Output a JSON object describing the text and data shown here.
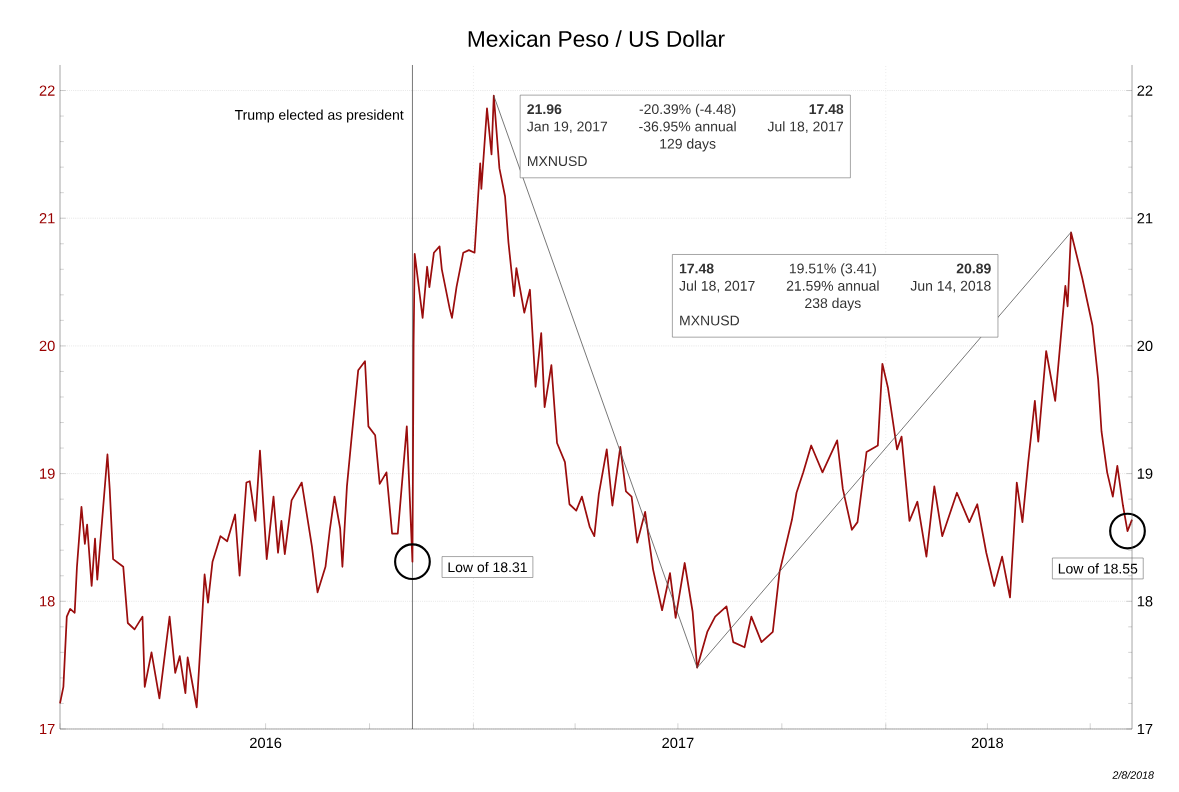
{
  "chart_data": {
    "type": "line",
    "title": "Mexican Peso / US Dollar",
    "x": [
      "2016-01-01",
      "2016-01-04",
      "2016-01-07",
      "2016-01-10",
      "2016-01-14",
      "2016-01-16",
      "2016-01-20",
      "2016-01-23",
      "2016-01-25",
      "2016-01-29",
      "2016-02-01",
      "2016-02-03",
      "2016-02-12",
      "2016-02-14",
      "2016-02-17",
      "2016-02-26",
      "2016-03-01",
      "2016-03-07",
      "2016-03-14",
      "2016-03-16",
      "2016-03-22",
      "2016-03-29",
      "2016-04-07",
      "2016-04-12",
      "2016-04-16",
      "2016-04-21",
      "2016-04-23",
      "2016-05-01",
      "2016-05-06",
      "2016-05-08",
      "2016-05-11",
      "2016-05-15",
      "2016-05-22",
      "2016-05-28",
      "2016-06-04",
      "2016-06-08",
      "2016-06-14",
      "2016-06-17",
      "2016-06-22",
      "2016-06-26",
      "2016-07-02",
      "2016-07-08",
      "2016-07-12",
      "2016-07-15",
      "2016-07-18",
      "2016-07-24",
      "2016-08-02",
      "2016-08-11",
      "2016-08-16",
      "2016-08-23",
      "2016-08-27",
      "2016-08-31",
      "2016-09-05",
      "2016-09-07",
      "2016-09-11",
      "2016-09-15",
      "2016-09-21",
      "2016-09-27",
      "2016-09-30",
      "2016-10-06",
      "2016-10-10",
      "2016-10-16",
      "2016-10-21",
      "2016-10-26",
      "2016-11-03",
      "2016-11-08",
      "2016-11-09",
      "2016-11-10",
      "2016-11-17",
      "2016-11-21",
      "2016-11-23",
      "2016-11-27",
      "2016-12-02",
      "2016-12-04",
      "2016-12-11",
      "2016-12-13",
      "2016-12-17",
      "2016-12-23",
      "2016-12-28",
      "2017-01-02",
      "2017-01-07",
      "2017-01-08",
      "2017-01-13",
      "2017-01-17",
      "2017-01-19",
      "2017-01-24",
      "2017-01-29",
      "2017-02-01",
      "2017-02-06",
      "2017-02-08",
      "2017-02-15",
      "2017-02-20",
      "2017-02-25",
      "2017-03-02",
      "2017-03-05",
      "2017-03-11",
      "2017-03-16",
      "2017-03-23",
      "2017-03-27",
      "2017-04-02",
      "2017-04-07",
      "2017-04-14",
      "2017-04-18",
      "2017-04-22",
      "2017-04-29",
      "2017-05-04",
      "2017-05-11",
      "2017-05-16",
      "2017-05-21",
      "2017-05-26",
      "2017-06-02",
      "2017-06-09",
      "2017-06-17",
      "2017-06-24",
      "2017-06-29",
      "2017-07-07",
      "2017-07-14",
      "2017-07-18",
      "2017-07-27",
      "2017-08-03",
      "2017-08-13",
      "2017-08-19",
      "2017-08-29",
      "2017-09-04",
      "2017-09-13",
      "2017-09-23",
      "2017-09-29",
      "2017-10-10",
      "2017-10-14",
      "2017-10-20",
      "2017-10-27",
      "2017-11-06",
      "2017-11-19",
      "2017-11-24",
      "2017-12-02",
      "2017-12-07",
      "2017-12-15",
      "2017-12-25",
      "2017-12-29",
      "2018-01-03",
      "2018-01-11",
      "2018-01-15",
      "2018-01-22",
      "2018-01-29",
      "2018-02-06",
      "2018-02-13",
      "2018-02-20",
      "2018-03-05",
      "2018-03-16",
      "2018-03-23",
      "2018-03-31",
      "2018-04-07",
      "2018-04-14",
      "2018-04-21",
      "2018-04-27",
      "2018-05-02",
      "2018-05-07",
      "2018-05-13",
      "2018-05-16",
      "2018-05-23",
      "2018-05-31",
      "2018-06-09",
      "2018-06-11",
      "2018-06-14",
      "2018-06-24",
      "2018-07-03",
      "2018-07-08",
      "2018-07-11",
      "2018-07-16",
      "2018-07-21",
      "2018-07-25",
      "2018-07-30",
      "2018-08-03",
      "2018-08-07"
    ],
    "series": [
      {
        "color": "#9b0d0d",
        "values": [
          17.2,
          17.33,
          17.88,
          17.94,
          17.91,
          18.27,
          18.74,
          18.45,
          18.6,
          18.12,
          18.49,
          18.17,
          19.15,
          18.88,
          18.33,
          18.27,
          17.83,
          17.78,
          17.88,
          17.33,
          17.6,
          17.24,
          17.88,
          17.44,
          17.57,
          17.28,
          17.56,
          17.17,
          17.9,
          18.21,
          17.99,
          18.31,
          18.51,
          18.47,
          18.68,
          18.2,
          18.93,
          18.94,
          18.63,
          19.18,
          18.33,
          18.82,
          18.38,
          18.63,
          18.37,
          18.79,
          18.93,
          18.43,
          18.07,
          18.27,
          18.57,
          18.82,
          18.57,
          18.27,
          18.9,
          19.27,
          19.81,
          19.88,
          19.37,
          19.3,
          18.92,
          19.01,
          18.53,
          18.53,
          19.37,
          18.31,
          20.0,
          20.72,
          20.22,
          20.62,
          20.46,
          20.73,
          20.78,
          20.6,
          20.29,
          20.22,
          20.46,
          20.73,
          20.75,
          20.73,
          21.43,
          21.23,
          21.86,
          21.5,
          21.96,
          21.39,
          21.17,
          20.81,
          20.39,
          20.61,
          20.26,
          20.44,
          19.68,
          20.1,
          19.52,
          19.85,
          19.24,
          19.09,
          18.76,
          18.71,
          18.82,
          18.58,
          18.51,
          18.84,
          19.19,
          18.75,
          19.21,
          18.86,
          18.82,
          18.46,
          18.7,
          18.25,
          17.93,
          18.22,
          17.87,
          18.3,
          17.92,
          17.48,
          17.76,
          17.88,
          17.96,
          17.68,
          17.64,
          17.88,
          17.68,
          17.76,
          18.23,
          18.64,
          18.85,
          19.01,
          19.22,
          19.01,
          19.26,
          18.88,
          18.56,
          18.62,
          19.17,
          19.22,
          19.86,
          19.67,
          19.19,
          19.29,
          18.63,
          18.78,
          18.35,
          18.9,
          18.51,
          18.85,
          18.62,
          18.76,
          18.38,
          18.12,
          18.35,
          18.03,
          18.93,
          18.62,
          19.08,
          19.57,
          19.25,
          19.96,
          19.57,
          20.47,
          20.31,
          20.89,
          20.53,
          20.16,
          19.74,
          19.33,
          19.01,
          18.82,
          19.06,
          18.75,
          18.55,
          18.64
        ]
      },
      {
        "color": "#555555",
        "x": [
          "2017-01-19",
          "2017-07-18"
        ],
        "values": [
          21.96,
          17.48
        ]
      },
      {
        "color": "#555555",
        "x": [
          "2017-07-18",
          "2018-06-14"
        ],
        "values": [
          17.48,
          20.89
        ]
      }
    ],
    "xlim": [
      "2016-01-01",
      "2018-08-07"
    ],
    "xticks": [
      {
        "value": "2016-01-01",
        "label": null
      },
      {
        "value": "2016-04-01",
        "label": null
      },
      {
        "value": "2016-07-01",
        "label": "2016"
      },
      {
        "value": "2016-10-01",
        "label": null
      },
      {
        "value": "2017-01-01",
        "label": null
      },
      {
        "value": "2017-04-01",
        "label": null
      },
      {
        "value": "2017-07-01",
        "label": "2017"
      },
      {
        "value": "2017-10-01",
        "label": null
      },
      {
        "value": "2018-01-01",
        "label": null
      },
      {
        "value": "2018-04-01",
        "label": "2018"
      },
      {
        "value": "2018-07-01",
        "label": null
      }
    ],
    "ylim": [
      17,
      22.2
    ],
    "yticks": [
      17,
      18,
      19,
      20,
      21,
      22
    ],
    "y2lim": [
      17,
      22.2
    ],
    "y2ticks": [
      17,
      18,
      19,
      20,
      21,
      22
    ],
    "grid": "y",
    "line_style": "solid",
    "ref_lines": [
      {
        "axis": "x",
        "value": "2016-11-08",
        "label": "Trump elected as president",
        "color": "#000000",
        "line_style": "solid"
      },
      {
        "axis": "x",
        "value": "2017-01-01",
        "color": "#bbbbbb",
        "line_style": "dotted"
      },
      {
        "axis": "x",
        "value": "2018-01-01",
        "color": "#bbbbbb",
        "line_style": "dotted"
      }
    ],
    "annotations": [
      "21.96",
      "-20.39% (-4.48)",
      "17.48",
      "Jan 19, 2017",
      "-36.95% annual",
      "Jul 18, 2017",
      "129 days",
      "MXNUSD",
      "17.48",
      "19.51% (3.41)",
      "20.89",
      "Jul 18, 2017",
      "21.59% annual",
      "Jun 14, 2018",
      "238 days",
      "MXNUSD",
      {
        "text": "Low of 18.31",
        "x": "2016-11-08",
        "y": 18.31
      },
      {
        "text": "Low of 18.55",
        "x": "2018-08-03",
        "y": 18.55
      },
      "2/8/2018"
    ]
  }
}
